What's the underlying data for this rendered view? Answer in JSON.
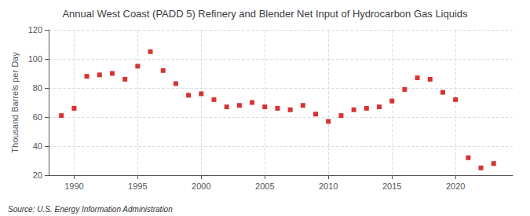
{
  "chart_data": {
    "type": "scatter",
    "title": "Annual West Coast (PADD 5) Refinery and Blender Net Input of Hydrocarbon Gas Liquids",
    "ylabel": "Thousand Barrels per Day",
    "annotations": [
      "Source: U.S. Energy Information Administration"
    ],
    "x": [
      1989,
      1990,
      1991,
      1992,
      1993,
      1994,
      1995,
      1996,
      1997,
      1998,
      1999,
      2000,
      2001,
      2002,
      2003,
      2004,
      2005,
      2006,
      2007,
      2008,
      2009,
      2010,
      2011,
      2012,
      2013,
      2014,
      2015,
      2016,
      2017,
      2018,
      2019,
      2020,
      2021,
      2022,
      2023
    ],
    "values": [
      61,
      66,
      88,
      89,
      90,
      86,
      95,
      105,
      92,
      83,
      75,
      76,
      72,
      67,
      68,
      70,
      67,
      66,
      65,
      68,
      62,
      57,
      61,
      65,
      66,
      67,
      71,
      79,
      87,
      86,
      77,
      72,
      32,
      25,
      28
    ],
    "color": "#cc0000",
    "marker": "square",
    "xlim": [
      1988.0,
      2024.5
    ],
    "ylim": [
      20,
      120
    ],
    "xticks": [
      1990,
      1995,
      2000,
      2005,
      2010,
      2015,
      2020
    ],
    "yticks": [
      20,
      40,
      60,
      80,
      100,
      120
    ],
    "grid": true
  }
}
